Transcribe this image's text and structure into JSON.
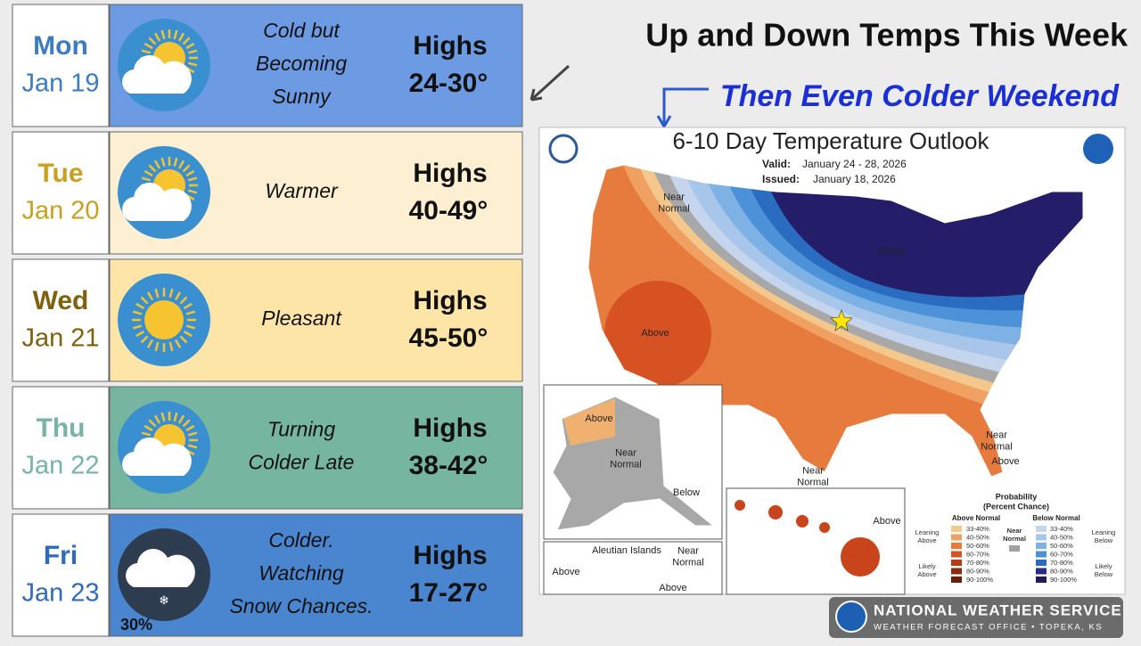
{
  "header": {
    "title": "Up and Down Temps This Week",
    "subtitle": "Then Even Colder Weekend"
  },
  "days": [
    {
      "day": "Mon",
      "date": "Jan 19",
      "desc": [
        "Cold but",
        "Becoming",
        "Sunny"
      ],
      "highs_label": "Highs",
      "highs": "24-30°"
    },
    {
      "day": "Tue",
      "date": "Jan 20",
      "desc": [
        "Warmer"
      ],
      "highs_label": "Highs",
      "highs": "40-49°"
    },
    {
      "day": "Wed",
      "date": "Jan 21",
      "desc": [
        "Pleasant"
      ],
      "highs_label": "Highs",
      "highs": "45-50°"
    },
    {
      "day": "Thu",
      "date": "Jan 22",
      "desc": [
        "Turning",
        "Colder Late"
      ],
      "highs_label": "Highs",
      "highs": "38-42°"
    },
    {
      "day": "Fri",
      "date": "Jan 23",
      "desc": [
        "Colder.",
        "Watching",
        "Snow Chances."
      ],
      "highs_label": "Highs",
      "highs": "17-27°",
      "precip": "30%"
    }
  ],
  "map": {
    "title": "6-10 Day Temperature Outlook",
    "valid_label": "Valid:",
    "valid": "January 24 - 28, 2026",
    "issued_label": "Issued:",
    "issued": "January 18, 2026",
    "labels": [
      [
        "Near",
        "Normal"
      ],
      [
        "Below"
      ],
      [
        "Above"
      ],
      [
        "Above"
      ],
      [
        "Near",
        "Normal"
      ],
      [
        "Below"
      ],
      [
        "Near",
        "Normal"
      ],
      [
        "Near",
        "Normal"
      ],
      [
        "Above"
      ],
      [
        "Above"
      ],
      [
        "Near",
        "Normal"
      ],
      [
        "Above"
      ],
      [
        "Above"
      ],
      [
        "Aleutian Islands"
      ]
    ],
    "legend": {
      "title": [
        "Probability",
        "(Percent Chance)"
      ],
      "above_header": "Above Normal",
      "below_header": "Below Normal",
      "near": [
        "Near",
        "Normal"
      ],
      "above_ranges": [
        "33-40%",
        "40-50%",
        "50-60%",
        "60-70%",
        "70-80%",
        "80-90%",
        "90-100%"
      ],
      "below_ranges": [
        "33-40%",
        "40-50%",
        "50-60%",
        "60-70%",
        "70-80%",
        "80-90%",
        "90-100%"
      ],
      "leaning_above": [
        "Leaning",
        "Above"
      ],
      "likely_above": [
        "Likely",
        "Above"
      ],
      "leaning_below": [
        "Leaning",
        "Below"
      ],
      "likely_below": [
        "Likely",
        "Below"
      ]
    }
  },
  "footer": {
    "name": "NATIONAL WEATHER SERVICE",
    "office": "WEATHER FORECAST OFFICE • TOPEKA, KS"
  }
}
